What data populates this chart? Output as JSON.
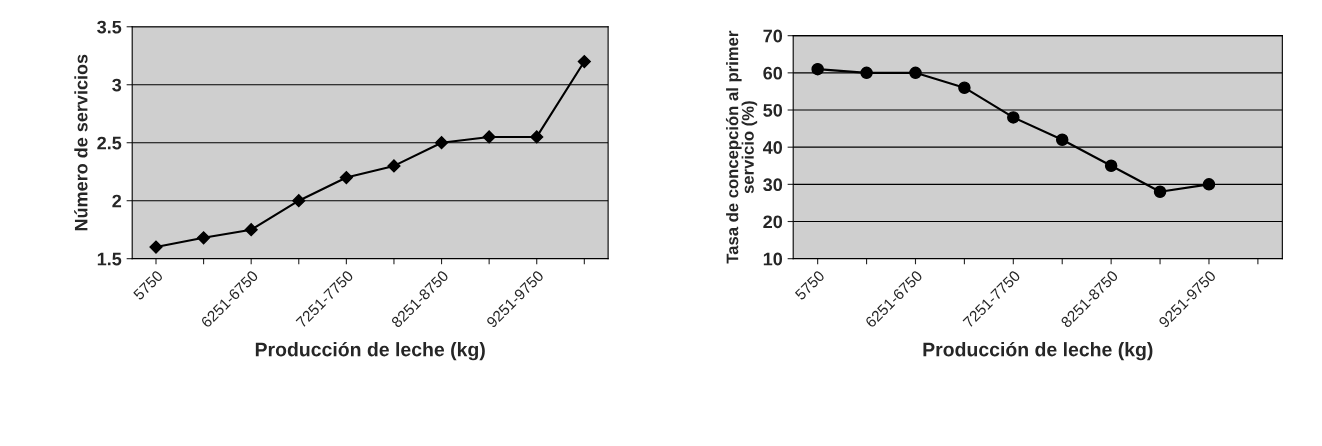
{
  "chart_data": [
    {
      "type": "line",
      "xlabel": "Producción de leche (kg)",
      "ylabel": "Número de servicios",
      "categories": [
        "5750",
        null,
        "6251-6750",
        null,
        "7251-7750",
        null,
        "8251-8750",
        null,
        "9251-9750",
        null
      ],
      "series": [
        {
          "color": "#000000",
          "values": [
            1.6,
            1.68,
            1.75,
            2.0,
            2.2,
            2.3,
            2.5,
            2.55,
            2.55,
            3.2
          ]
        }
      ],
      "ylim": [
        1.5,
        3.5
      ],
      "yticks": [
        1.5,
        2,
        2.5,
        3,
        3.5
      ],
      "grid": "y",
      "marker": "diamond",
      "legend": false
    },
    {
      "type": "line",
      "xlabel": "Producción de leche (kg)",
      "ylabel": "Tasa de concepción al primer\nservicio (%)",
      "categories": [
        "5750",
        null,
        "6251-6750",
        null,
        "7251-7750",
        null,
        "8251-8750",
        null,
        "9251-9750",
        null
      ],
      "series": [
        {
          "color": "#000000",
          "values": [
            61,
            60,
            60,
            56,
            48,
            42,
            35,
            28,
            30,
            null
          ]
        }
      ],
      "ylim": [
        10,
        70
      ],
      "yticks": [
        10,
        20,
        30,
        40,
        50,
        60,
        70
      ],
      "grid": "y",
      "marker": "circle",
      "legend": false
    }
  ]
}
